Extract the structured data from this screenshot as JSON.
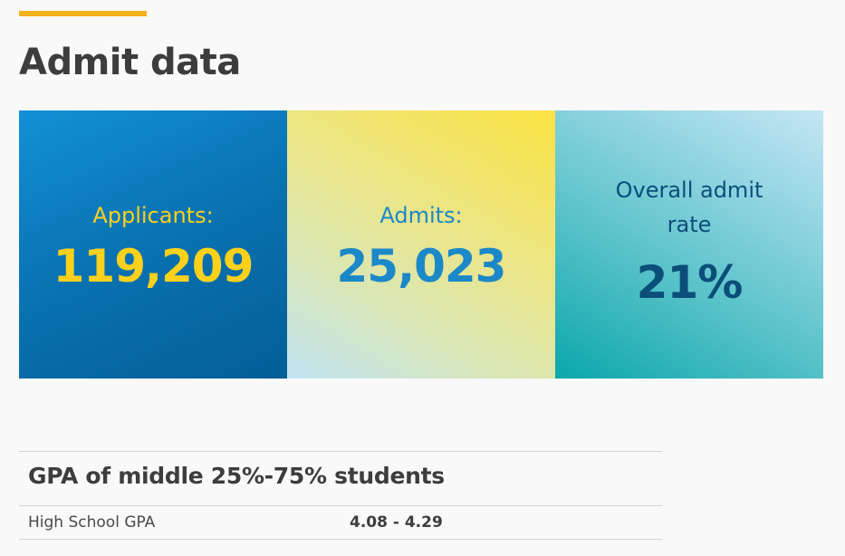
{
  "page": {
    "title": "Admit data"
  },
  "stats": [
    {
      "label": "Applicants:",
      "value": "119,209"
    },
    {
      "label": "Admits:",
      "value": "25,023"
    },
    {
      "label": "Overall admit rate",
      "value": "21%"
    }
  ],
  "gpa_table": {
    "heading": "GPA of middle 25%-75% students",
    "rows": [
      {
        "label": "High School GPA",
        "value": "4.08 - 4.29"
      }
    ]
  },
  "colors": {
    "accent": "#f4b21c",
    "applicants_bg": "#0a74b4",
    "applicants_text": "#fbd11c",
    "admits_bg": "#ece585",
    "admits_text": "#1b88c8",
    "rate_bg": "#59c2c9",
    "rate_text": "#0b4e79"
  }
}
